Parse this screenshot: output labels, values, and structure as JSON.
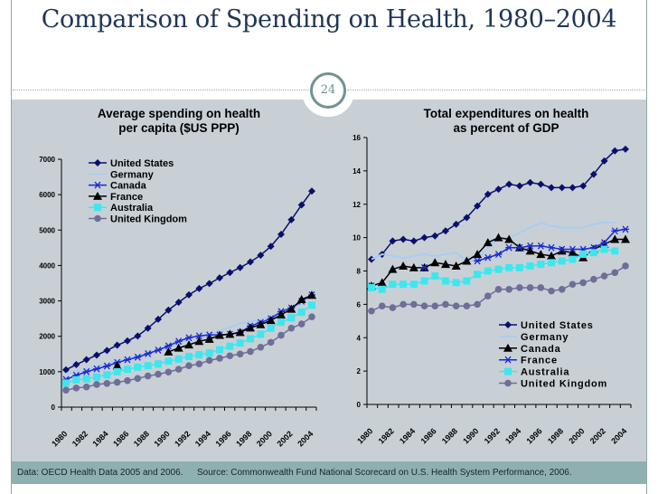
{
  "slide": {
    "title": "Comparison of Spending on Health, 1980–2004",
    "slide_number": "24",
    "footer_data": "Data: OECD Health Data 2005 and 2006.",
    "footer_source": "Source: Commonwealth Fund National Scorecard on U.S. Health System Performance, 2006."
  },
  "colors": {
    "title": "#1f3557",
    "panel": "#c8d0d6",
    "footer": "#8fb0b0",
    "badge": "#6f9392"
  },
  "chart_data": [
    {
      "type": "line",
      "title": "Average spending on health per capita ($US PPP)",
      "title_lines": [
        "Average spending on health",
        "per capita ($US PPP)"
      ],
      "xlabel": "",
      "ylabel": "",
      "ylim": [
        0,
        7000
      ],
      "yticks": [
        0,
        1000,
        2000,
        3000,
        4000,
        5000,
        6000,
        7000
      ],
      "xticks": [
        "1980",
        "1982",
        "1984",
        "1986",
        "1988",
        "1990",
        "1992",
        "1994",
        "1996",
        "1998",
        "2000",
        "2002",
        "2004"
      ],
      "x": [
        1980,
        1981,
        1982,
        1983,
        1984,
        1985,
        1986,
        1987,
        1988,
        1989,
        1990,
        1991,
        1992,
        1993,
        1994,
        1995,
        1996,
        1997,
        1998,
        1999,
        2000,
        2001,
        2002,
        2003,
        2004
      ],
      "grid": false,
      "legend_position": "top-left",
      "series": [
        {
          "name": "United States",
          "color": "#0a0f6e",
          "marker": "diamond",
          "values": [
            1055,
            1200,
            1340,
            1470,
            1600,
            1750,
            1870,
            2010,
            2230,
            2480,
            2740,
            2960,
            3170,
            3350,
            3490,
            3650,
            3800,
            3940,
            4100,
            4290,
            4540,
            4880,
            5290,
            5710,
            6100
          ]
        },
        {
          "name": "Germany",
          "color": "#a9cdf2",
          "marker": "none",
          "values": [
            950,
            1020,
            1080,
            1150,
            1230,
            1320,
            1390,
            1450,
            1530,
            1590,
            1700,
            1790,
            1930,
            1990,
            2070,
            2150,
            2260,
            2360,
            2410,
            2470,
            2570,
            2640,
            2780,
            2900,
            null
          ]
        },
        {
          "name": "Canada",
          "color": "#1a2ad0",
          "marker": "asterisk",
          "values": [
            780,
            900,
            1000,
            1080,
            1160,
            1260,
            1340,
            1410,
            1510,
            1610,
            1730,
            1860,
            1960,
            2010,
            2040,
            2040,
            2060,
            2110,
            2290,
            2390,
            2500,
            2700,
            2800,
            2990,
            3170
          ]
        },
        {
          "name": "France",
          "color": "#000000",
          "marker": "triangle",
          "values": [
            null,
            null,
            null,
            null,
            null,
            1170,
            null,
            null,
            null,
            null,
            1560,
            1670,
            1760,
            1860,
            1920,
            2030,
            2060,
            2110,
            2240,
            2330,
            2450,
            2610,
            2770,
            3040,
            3160
          ]
        },
        {
          "name": "Australia",
          "color": "#3fe6ee",
          "marker": "square",
          "values": [
            680,
            770,
            800,
            850,
            910,
            1000,
            1070,
            1130,
            1170,
            1220,
            1300,
            1360,
            1430,
            1480,
            1530,
            1620,
            1720,
            1810,
            1930,
            2060,
            2230,
            2400,
            2520,
            2680,
            2880
          ]
        },
        {
          "name": "United Kingdom",
          "color": "#6e6e98",
          "marker": "circle",
          "values": [
            480,
            540,
            570,
            640,
            670,
            700,
            750,
            810,
            880,
            930,
            990,
            1070,
            1170,
            1220,
            1320,
            1380,
            1450,
            1500,
            1570,
            1690,
            1830,
            2030,
            2230,
            2350,
            2550
          ]
        }
      ]
    },
    {
      "type": "line",
      "title": "Total expenditures on health as percent of GDP",
      "title_lines": [
        "Total expenditures on health",
        "as percent of GDP"
      ],
      "xlabel": "",
      "ylabel": "",
      "ylim": [
        0,
        16
      ],
      "yticks": [
        0,
        2,
        4,
        6,
        8,
        10,
        12,
        14,
        16
      ],
      "xticks": [
        "1980",
        "1982",
        "1984",
        "1986",
        "1988",
        "1990",
        "1992",
        "1994",
        "1996",
        "1998",
        "2000",
        "2002",
        "2004"
      ],
      "x": [
        1980,
        1981,
        1982,
        1983,
        1984,
        1985,
        1986,
        1987,
        1988,
        1989,
        1990,
        1991,
        1992,
        1993,
        1994,
        1995,
        1996,
        1997,
        1998,
        1999,
        2000,
        2001,
        2002,
        2003,
        2004
      ],
      "grid": false,
      "legend_position": "bottom-right",
      "series": [
        {
          "name": "United States",
          "color": "#0a0f6e",
          "marker": "diamond",
          "values": [
            8.7,
            9.0,
            9.8,
            9.9,
            9.8,
            10.0,
            10.1,
            10.4,
            10.8,
            11.2,
            11.9,
            12.6,
            12.9,
            13.2,
            13.1,
            13.3,
            13.2,
            13.0,
            13.0,
            13.0,
            13.1,
            13.8,
            14.6,
            15.2,
            15.3
          ]
        },
        {
          "name": "Germany",
          "color": "#a9cdf2",
          "marker": "none",
          "values": [
            8.7,
            9.0,
            8.9,
            8.8,
            8.9,
            9.0,
            8.9,
            9.0,
            9.1,
            8.6,
            8.7,
            9.4,
            9.9,
            10.0,
            10.3,
            10.6,
            10.9,
            10.7,
            10.6,
            10.6,
            10.6,
            10.8,
            10.9,
            10.9,
            null
          ]
        },
        {
          "name": "Canada",
          "color": "#000000",
          "marker": "triangle",
          "values": [
            7.1,
            7.3,
            8.1,
            8.3,
            8.2,
            8.2,
            8.5,
            8.4,
            8.3,
            8.6,
            9.0,
            9.7,
            10.0,
            9.9,
            9.4,
            9.2,
            9.0,
            8.9,
            9.2,
            9.1,
            8.8,
            9.3,
            9.6,
            9.9,
            9.9
          ]
        },
        {
          "name": "France",
          "color": "#1a2ad0",
          "marker": "asterisk",
          "values": [
            7.1,
            null,
            null,
            null,
            null,
            8.2,
            null,
            null,
            null,
            null,
            8.6,
            8.8,
            9.0,
            9.4,
            9.4,
            9.5,
            9.5,
            9.4,
            9.3,
            9.3,
            9.3,
            9.4,
            9.7,
            10.4,
            10.5
          ]
        },
        {
          "name": "Australia",
          "color": "#3fe6ee",
          "marker": "square",
          "values": [
            7.0,
            6.9,
            7.2,
            7.2,
            7.2,
            7.4,
            7.7,
            7.4,
            7.3,
            7.4,
            7.8,
            8.0,
            8.1,
            8.2,
            8.2,
            8.3,
            8.4,
            8.5,
            8.6,
            8.7,
            9.0,
            9.1,
            9.3,
            9.2,
            null
          ]
        },
        {
          "name": "United Kingdom",
          "color": "#6e6e98",
          "marker": "circle",
          "values": [
            5.6,
            5.9,
            5.8,
            6.0,
            6.0,
            5.9,
            5.9,
            6.0,
            5.9,
            5.9,
            6.0,
            6.5,
            6.9,
            6.9,
            7.0,
            7.0,
            7.0,
            6.8,
            6.9,
            7.2,
            7.3,
            7.5,
            7.7,
            7.9,
            8.3
          ]
        }
      ]
    }
  ]
}
